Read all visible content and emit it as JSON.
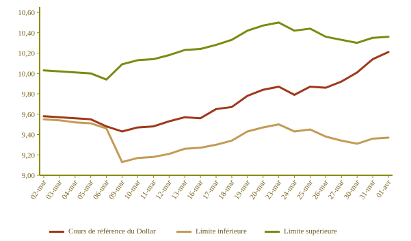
{
  "chart_data": {
    "type": "line",
    "title": "",
    "xlabel": "",
    "ylabel": "",
    "ylim": [
      9.0,
      10.6
    ],
    "yticks": [
      "9,00",
      "9,20",
      "9,40",
      "9,60",
      "9,80",
      "10,00",
      "10,20",
      "10,40",
      "10,60"
    ],
    "ytick_values": [
      9.0,
      9.2,
      9.4,
      9.6,
      9.8,
      10.0,
      10.2,
      10.4,
      10.6
    ],
    "categories": [
      "02-mar",
      "03-mar",
      "04-mar",
      "05-mar",
      "06-mar",
      "09-mar",
      "10-mar",
      "11-mar",
      "12-mar",
      "13-mar",
      "16-mar",
      "17-mar",
      "18-mar",
      "19-mar",
      "20-mar",
      "23-mar",
      "24-mar",
      "25-mar",
      "26-mar",
      "27-mar",
      "30-mar",
      "31-mar",
      "01-avr"
    ],
    "grid": false,
    "legend_position": "bottom",
    "series": [
      {
        "name": "Cours de référence du Dollar",
        "color": "#a0381a",
        "values": [
          9.58,
          9.57,
          9.56,
          9.55,
          9.48,
          9.43,
          9.47,
          9.48,
          9.53,
          9.57,
          9.56,
          9.65,
          9.67,
          9.78,
          9.84,
          9.87,
          9.79,
          9.87,
          9.86,
          9.92,
          10.01,
          10.14,
          10.21
        ]
      },
      {
        "name": "Limite inférieure",
        "color": "#c49a55",
        "values": [
          9.55,
          9.54,
          9.52,
          9.51,
          9.46,
          9.13,
          9.17,
          9.18,
          9.21,
          9.26,
          9.27,
          9.3,
          9.34,
          9.43,
          9.47,
          9.5,
          9.43,
          9.45,
          9.38,
          9.34,
          9.31,
          9.36,
          9.37
        ]
      },
      {
        "name": "Limite supérieure",
        "color": "#7d8a10",
        "values": [
          10.03,
          10.02,
          10.01,
          10.0,
          9.94,
          10.09,
          10.13,
          10.14,
          10.18,
          10.23,
          10.24,
          10.28,
          10.33,
          10.42,
          10.47,
          10.5,
          10.42,
          10.44,
          10.36,
          10.33,
          10.3,
          10.35,
          10.36
        ]
      }
    ]
  }
}
